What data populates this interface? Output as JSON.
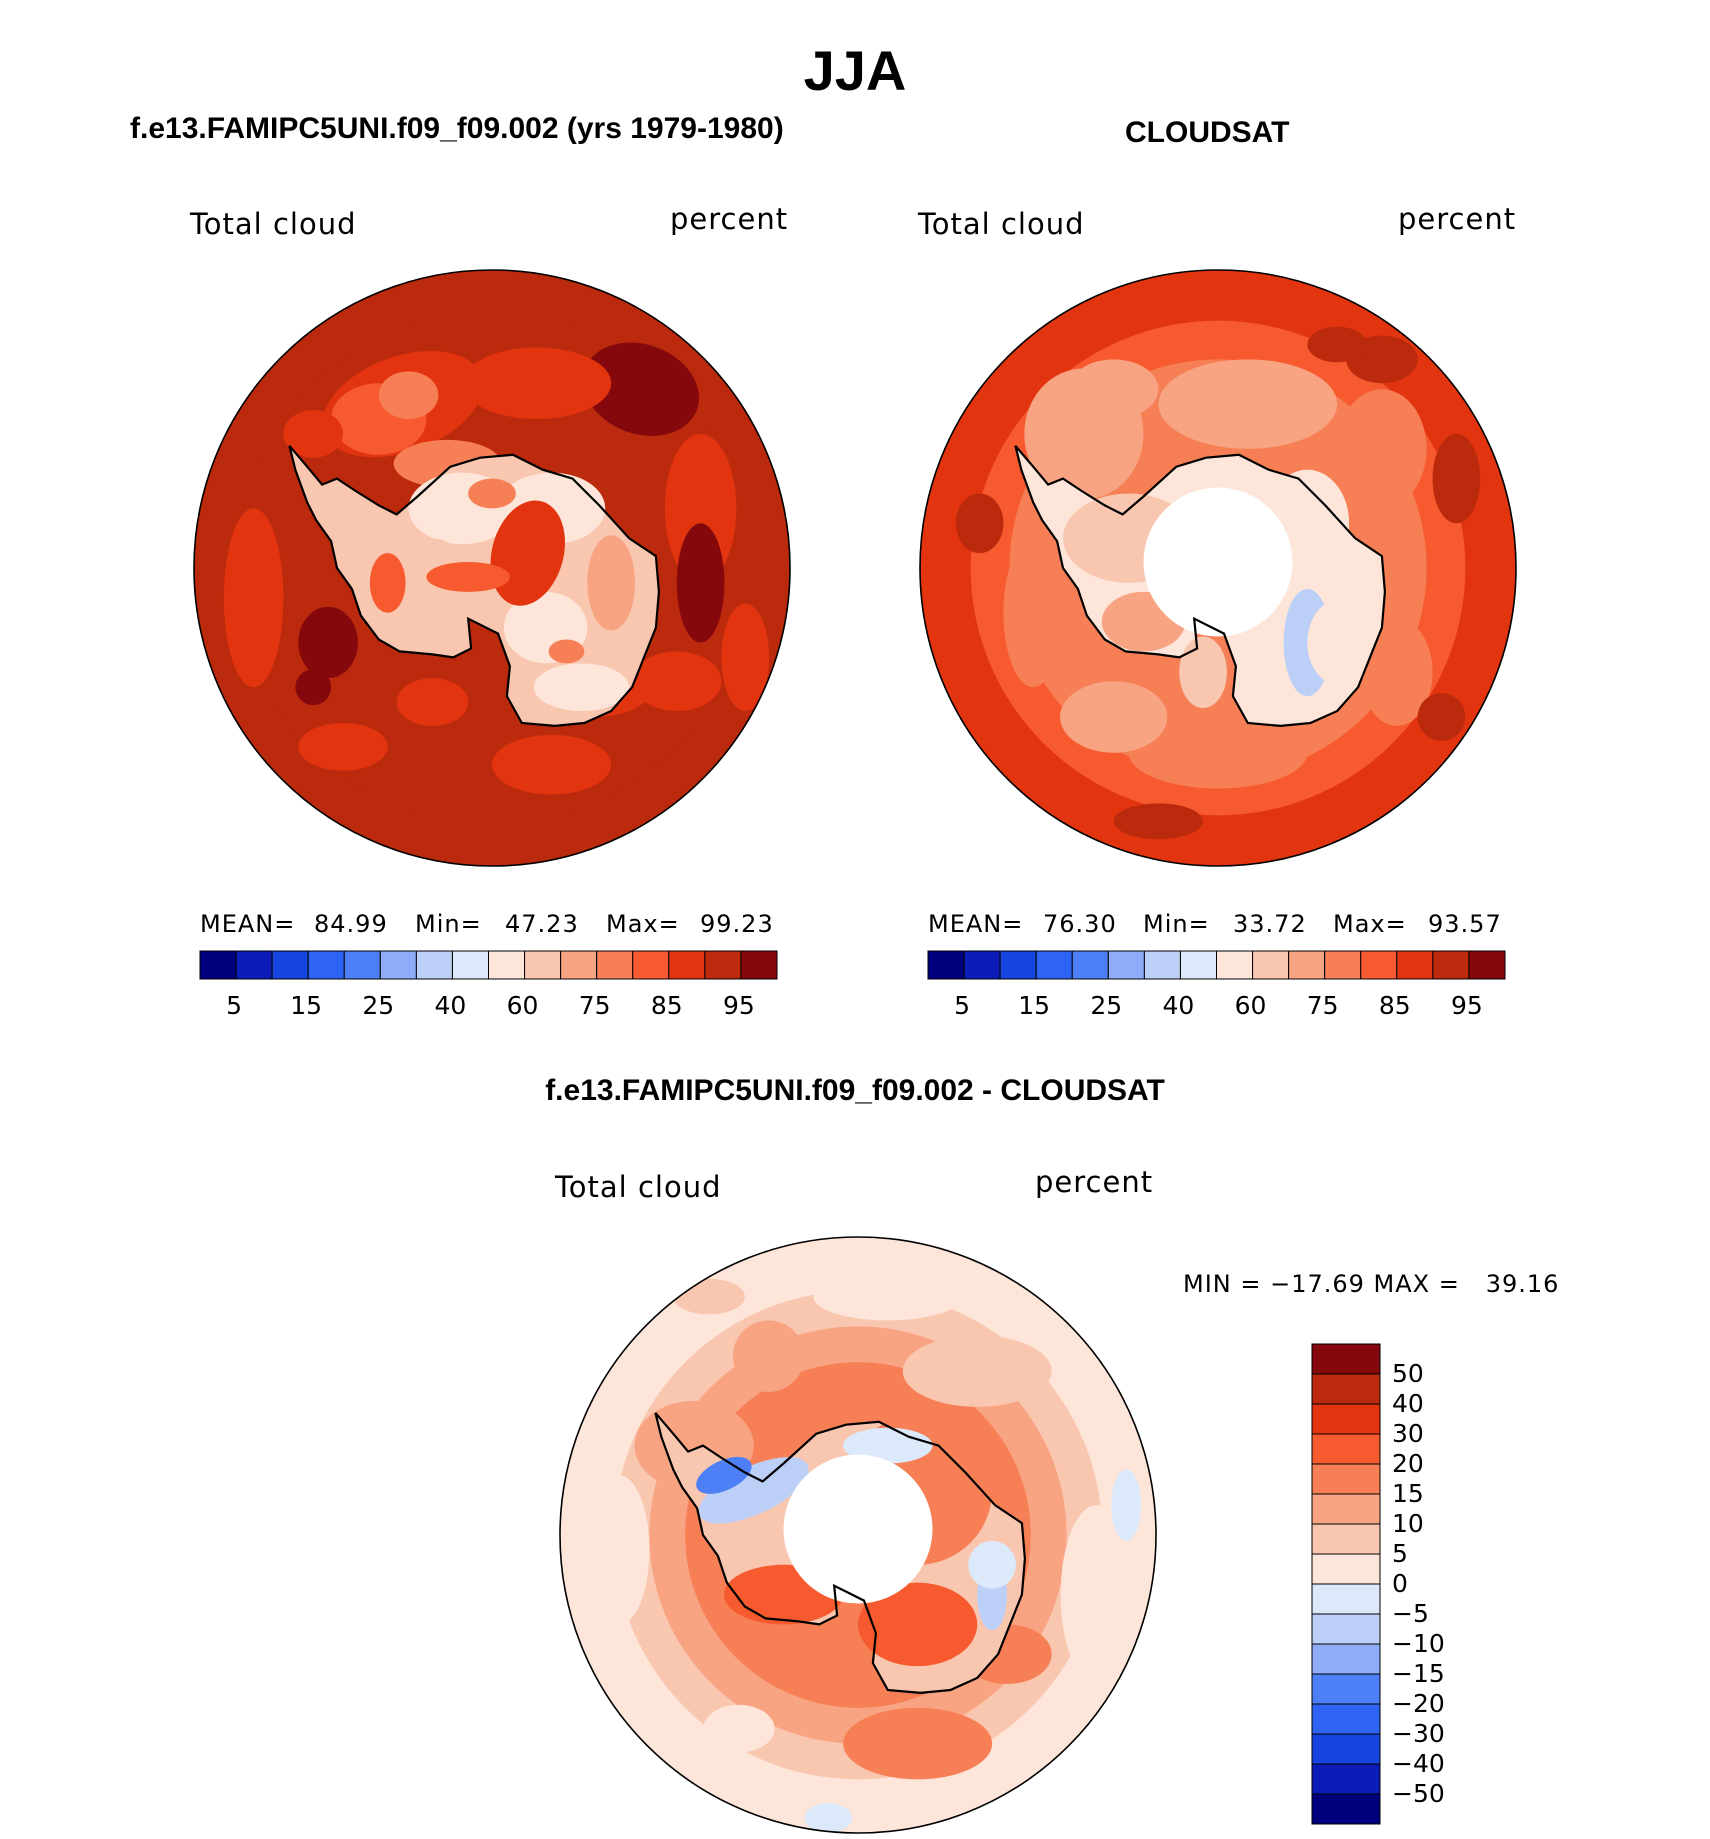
{
  "title": "JJA",
  "colors": {
    "seq_palette": [
      "#00007d",
      "#0c1cb6",
      "#1644de",
      "#2e64f4",
      "#4d80f7",
      "#8eacf7",
      "#bcd0f7",
      "#dbe9fb",
      "#fde6d9",
      "#f9c6b0",
      "#f8a483",
      "#f67f55",
      "#f65a2e",
      "#e2350f",
      "#bb2a0d",
      "#85090c"
    ],
    "diff_palette": [
      "#85090c",
      "#bb2a0d",
      "#e2350f",
      "#f65a2e",
      "#f67f55",
      "#f8a483",
      "#f9c6b0",
      "#fde6d9",
      "#dbe9fb",
      "#bcd0f7",
      "#8eacf7",
      "#4d80f7",
      "#2e64f4",
      "#1644de",
      "#0c1cb6",
      "#00007d"
    ],
    "land_outline": "#000000"
  },
  "chart_data": [
    {
      "type": "heatmap",
      "projection": "south-polar-stereographic",
      "title": "f.e13.FAMIPC5UNI.f09_f09.002 (yrs 1979-1980)",
      "left_label": "Total cloud",
      "right_label": "percent",
      "stats": {
        "mean_label": "MEAN=",
        "mean": "84.99",
        "min_label": "Min=",
        "min": "47.23",
        "max_label": "Max=",
        "max": "99.23"
      },
      "colorbar": {
        "orientation": "horizontal",
        "tick_labels": [
          "5",
          "15",
          "25",
          "40",
          "60",
          "75",
          "85",
          "95"
        ]
      },
      "field_description": "ocean mostly 85-95 percent, continent interior 50-75 percent"
    },
    {
      "type": "heatmap",
      "projection": "south-polar-stereographic",
      "title": "CLOUDSAT",
      "left_label": "Total cloud",
      "right_label": "percent",
      "stats": {
        "mean_label": "MEAN=",
        "mean": "76.30",
        "min_label": "Min=",
        "min": "33.72",
        "max_label": "Max=",
        "max": "93.57"
      },
      "colorbar": {
        "orientation": "horizontal",
        "tick_labels": [
          "5",
          "15",
          "25",
          "40",
          "60",
          "75",
          "85",
          "95"
        ]
      },
      "missing_region": "pole (no data)"
    },
    {
      "type": "heatmap",
      "projection": "south-polar-stereographic",
      "title": "f.e13.FAMIPC5UNI.f09_f09.002 - CLOUDSAT",
      "left_label": "Total cloud",
      "right_label": "percent",
      "stats_text": "MIN = −17.69 MAX =   39.16",
      "colorbar": {
        "orientation": "vertical",
        "tick_labels": [
          "50",
          "40",
          "30",
          "20",
          "15",
          "10",
          "5",
          "0",
          "−5",
          "−10",
          "−15",
          "−20",
          "−30",
          "−40",
          "−50"
        ]
      },
      "missing_region": "pole (no data)"
    }
  ]
}
